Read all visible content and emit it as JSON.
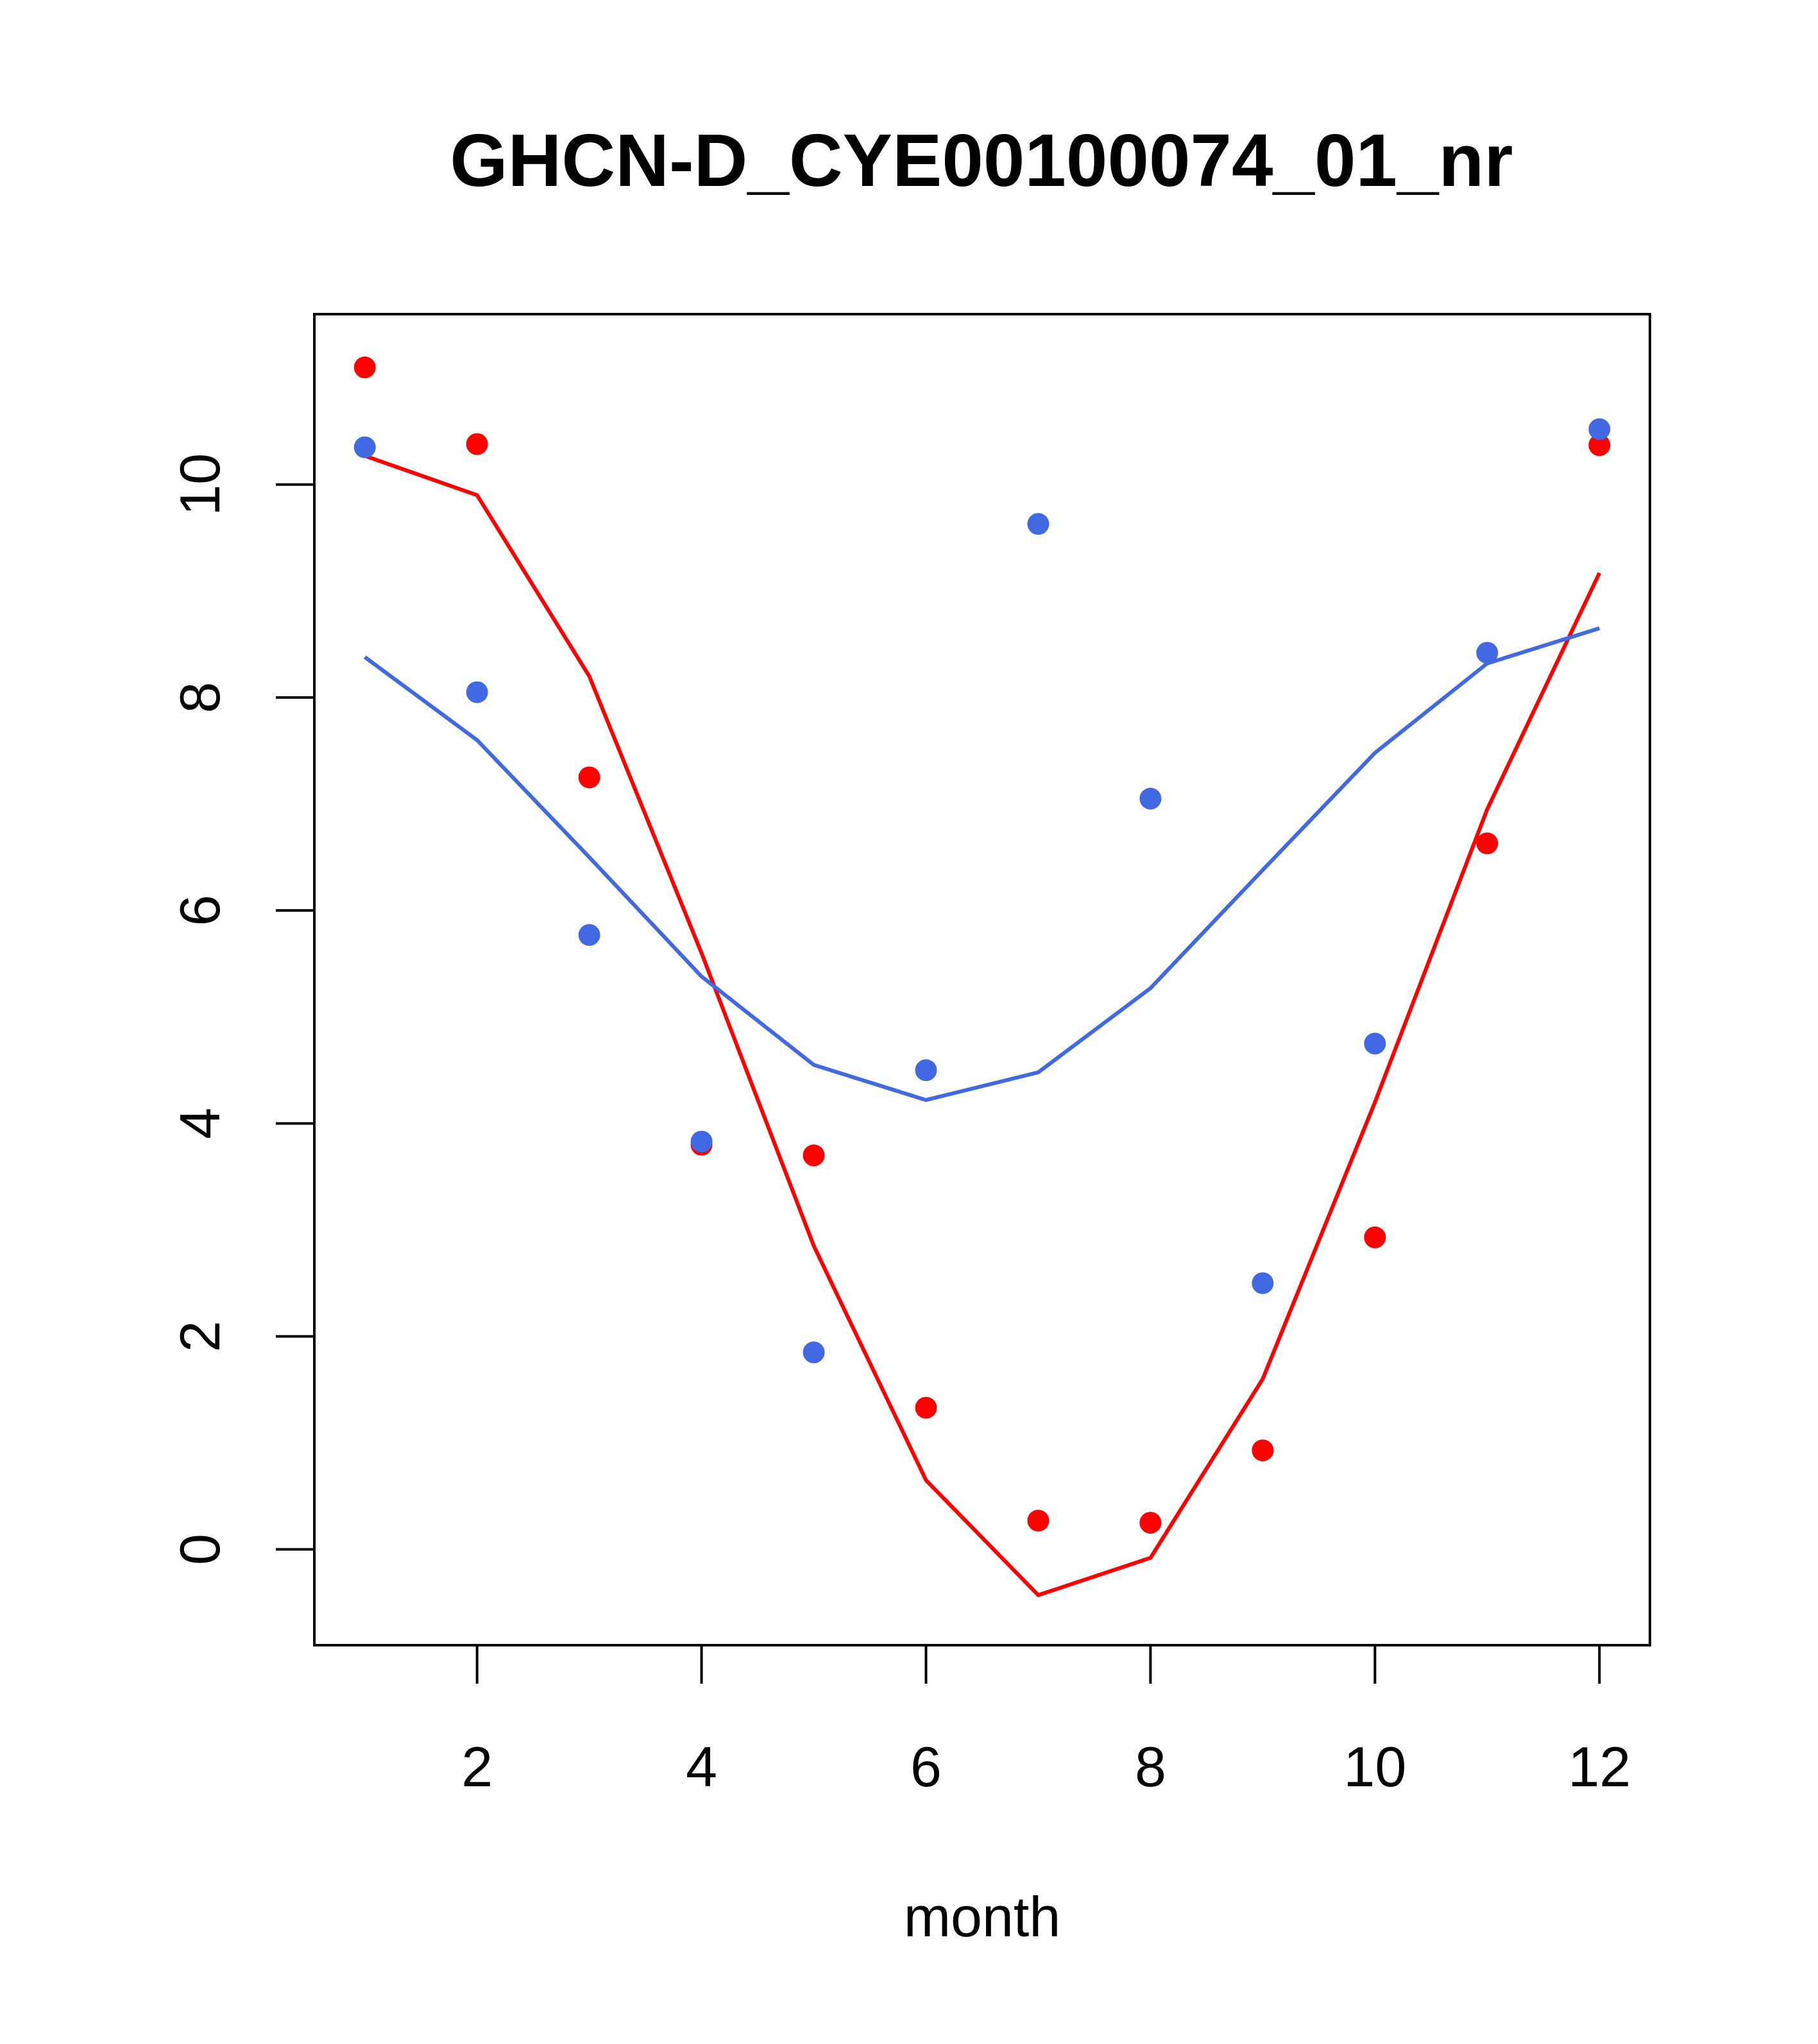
{
  "chart_data": {
    "type": "scatter",
    "title": "GHCN-D_CYE00100074_01_nr",
    "xlabel": "month",
    "ylabel": "",
    "xlim": [
      0.55,
      12.45
    ],
    "ylim": [
      -0.9,
      11.6
    ],
    "x_ticks": [
      2,
      4,
      6,
      8,
      10,
      12
    ],
    "y_ticks": [
      0,
      2,
      4,
      6,
      8,
      10
    ],
    "grid": false,
    "x": [
      1,
      2,
      3,
      4,
      5,
      6,
      7,
      8,
      9,
      10,
      11,
      12
    ],
    "series": [
      {
        "color": "#ff0000",
        "points": [
          11.1,
          10.38,
          7.25,
          3.8,
          3.7,
          1.33,
          0.27,
          0.25,
          0.93,
          2.93,
          6.63,
          10.37
        ],
        "line": [
          10.27,
          9.9,
          8.2,
          5.6,
          2.85,
          0.65,
          -0.43,
          -0.08,
          1.6,
          4.2,
          6.95,
          9.17
        ]
      },
      {
        "color": "#4169e1",
        "points": [
          10.35,
          8.05,
          5.77,
          3.83,
          1.85,
          4.5,
          9.63,
          7.05,
          2.5,
          4.75,
          8.42,
          10.52
        ],
        "line": [
          8.38,
          7.6,
          6.5,
          5.38,
          4.55,
          4.22,
          4.48,
          5.27,
          6.38,
          7.48,
          8.32,
          8.65
        ]
      }
    ]
  }
}
